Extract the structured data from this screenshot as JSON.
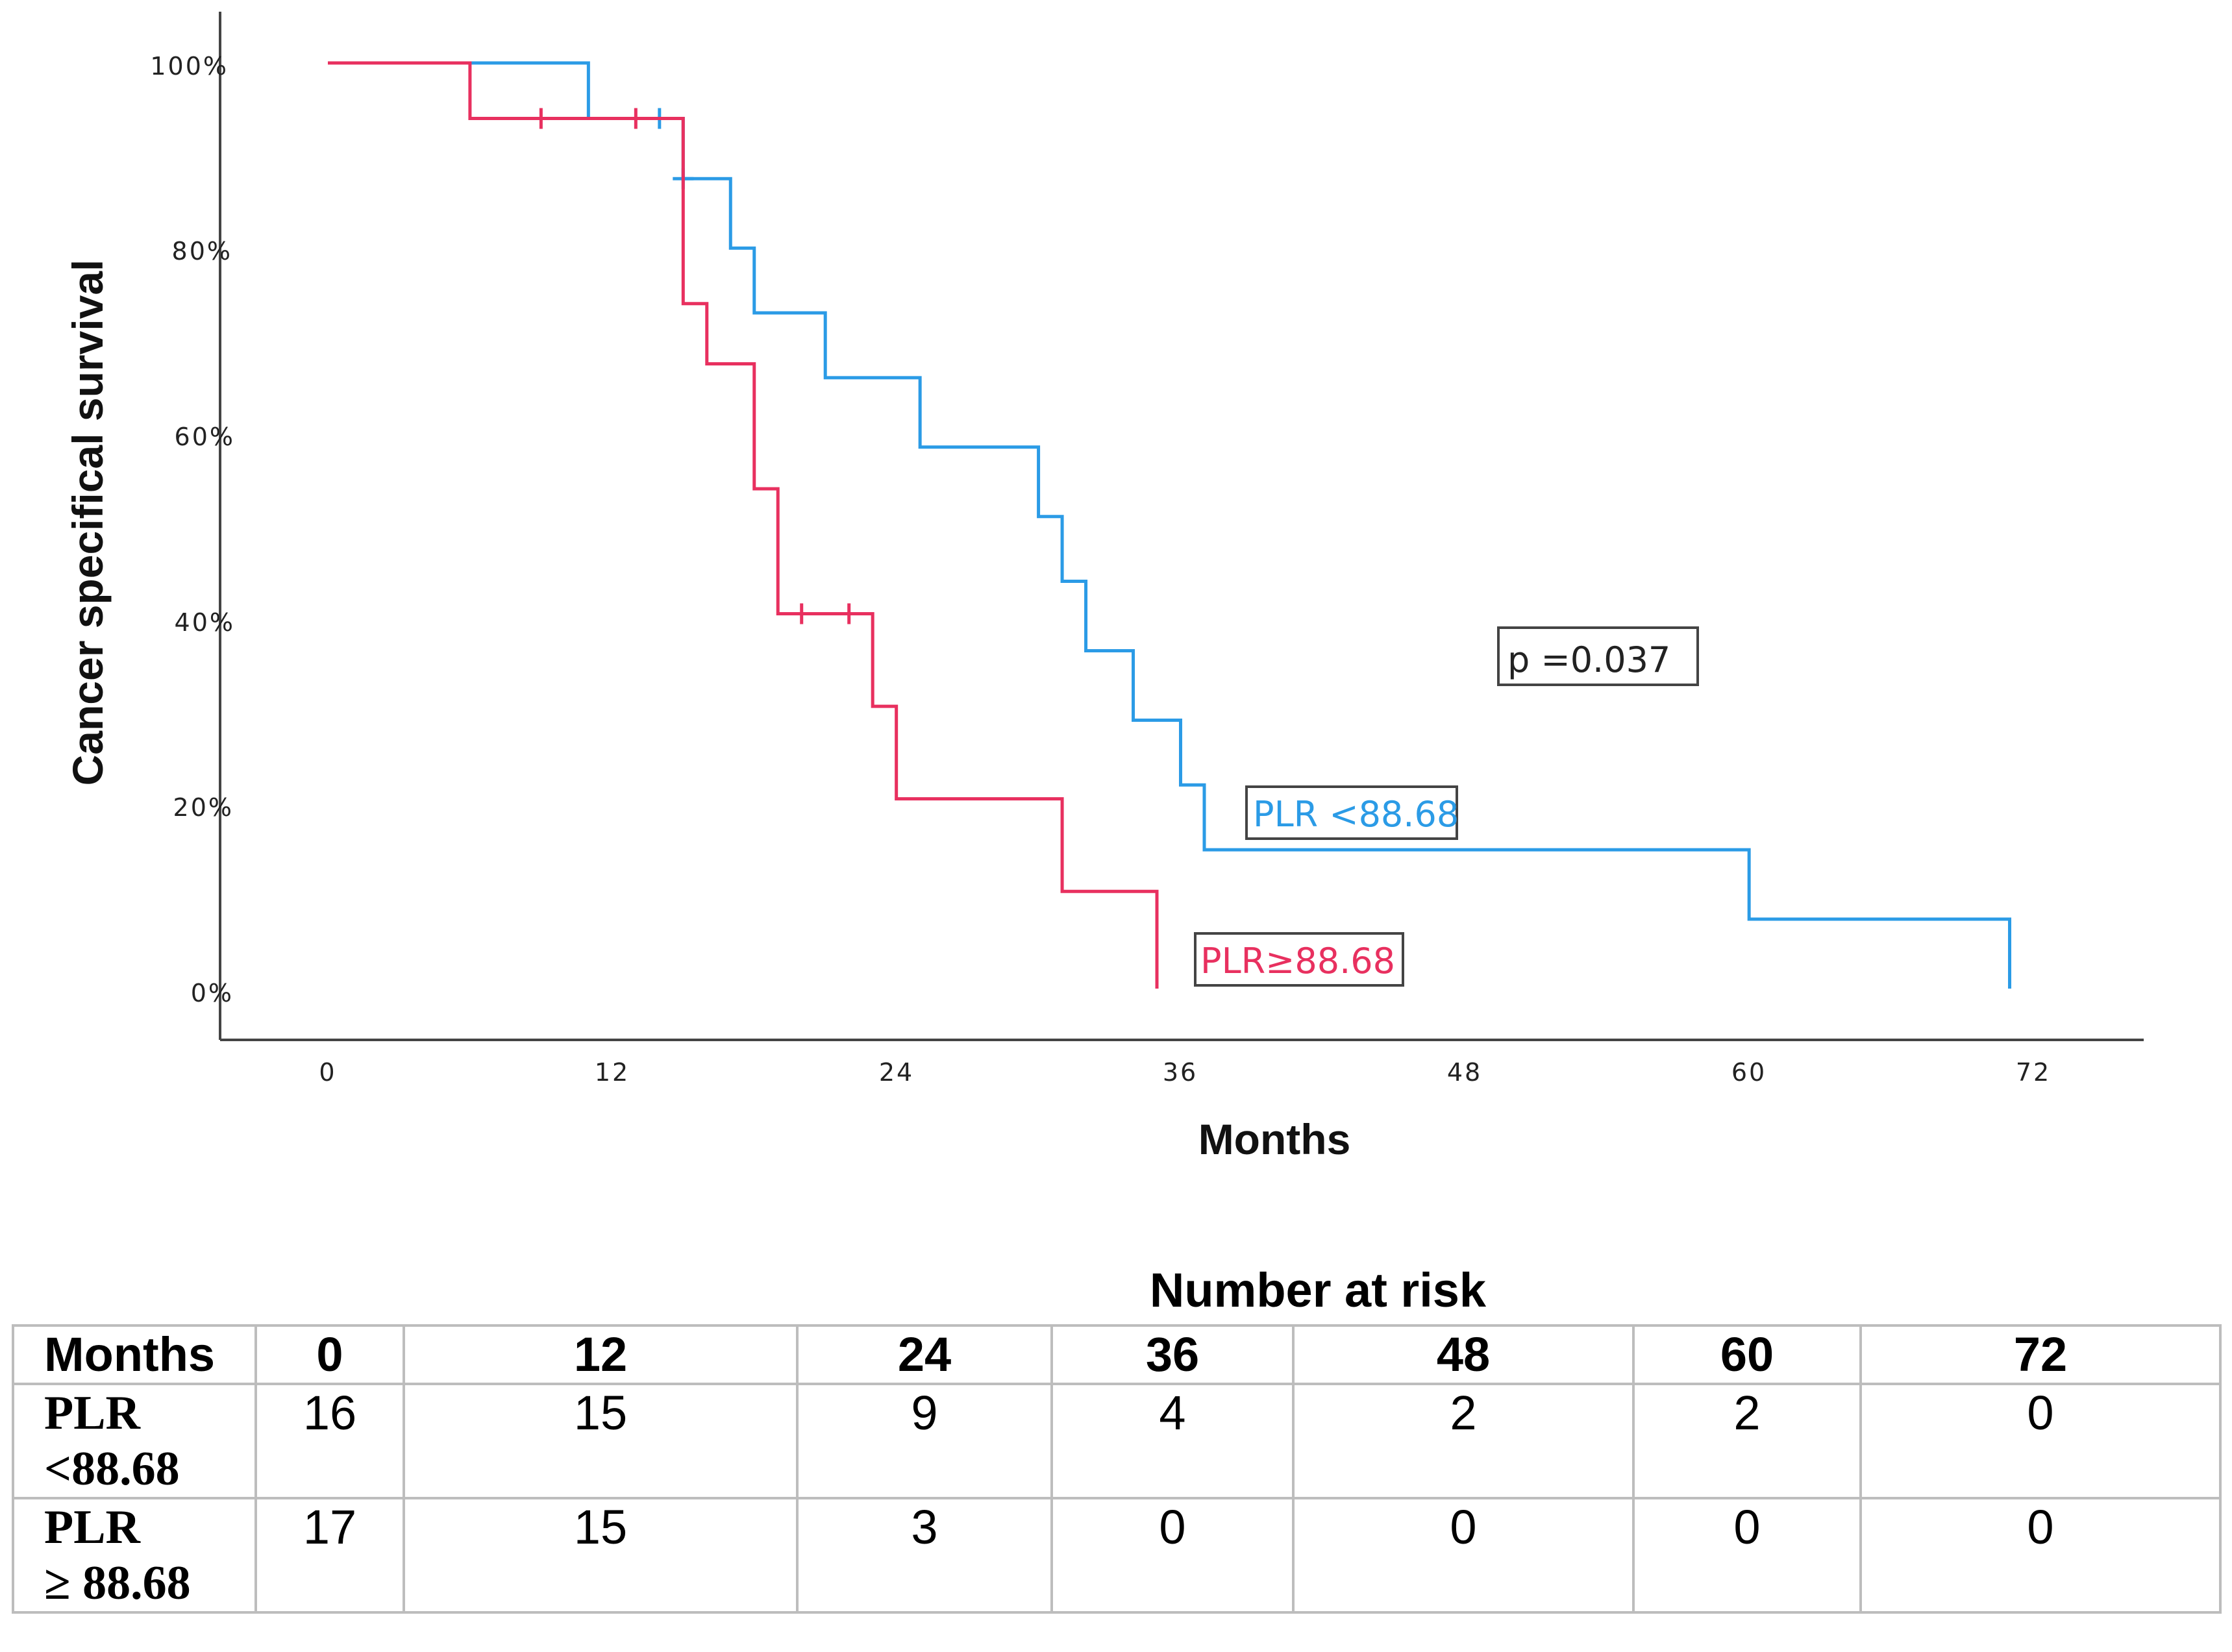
{
  "chart_data": {
    "type": "line",
    "subtype": "kaplan-meier",
    "ylabel": "Cancer specifical survival",
    "xlabel": "Months",
    "xlim": [
      0,
      72
    ],
    "ylim": [
      0,
      100
    ],
    "x_ticks": [
      "0",
      "12",
      "24",
      "36",
      "48",
      "60",
      "72"
    ],
    "y_ticks": [
      "0%",
      "20%",
      "40%",
      "60%",
      "80%",
      "100%"
    ],
    "grid": false,
    "annotation": "p =0.037",
    "series": [
      {
        "name": "PLR <88.68",
        "color": "#2b9be6",
        "steps": [
          [
            0,
            100
          ],
          [
            11,
            94
          ],
          [
            15,
            87.5
          ],
          [
            17,
            80
          ],
          [
            18,
            73
          ],
          [
            21,
            66
          ],
          [
            25,
            58.5
          ],
          [
            30,
            51
          ],
          [
            31,
            44
          ],
          [
            32,
            36.5
          ],
          [
            34,
            29
          ],
          [
            36,
            22
          ],
          [
            37,
            15
          ],
          [
            60,
            7.5
          ],
          [
            71,
            0
          ]
        ],
        "censored": [
          [
            14,
            94
          ],
          [
            15,
            87.5
          ]
        ]
      },
      {
        "name": "PLR≥88.68",
        "color": "#e8305f",
        "steps": [
          [
            0,
            100
          ],
          [
            6,
            94
          ],
          [
            15,
            74
          ],
          [
            16,
            67.5
          ],
          [
            18,
            54
          ],
          [
            19,
            40.5
          ],
          [
            23,
            30.5
          ],
          [
            24,
            20.5
          ],
          [
            31,
            10.5
          ],
          [
            35,
            0
          ]
        ],
        "censored": [
          [
            9,
            94
          ],
          [
            13,
            94
          ],
          [
            20,
            40.5
          ],
          [
            22,
            40.5
          ]
        ]
      }
    ]
  },
  "risk_table": {
    "title": "Number at risk",
    "header": [
      "Months",
      "0",
      "12",
      "24",
      "36",
      "48",
      "60",
      "72"
    ],
    "rows": [
      {
        "label_line1": "PLR",
        "label_line2": "<88.68",
        "values": [
          "16",
          "15",
          "9",
          "4",
          "2",
          "2",
          "0"
        ]
      },
      {
        "label_line1": "PLR",
        "label_line2": "≥ 88.68",
        "values": [
          "17",
          "15",
          "3",
          "0",
          "0",
          "0",
          "0"
        ]
      }
    ]
  }
}
